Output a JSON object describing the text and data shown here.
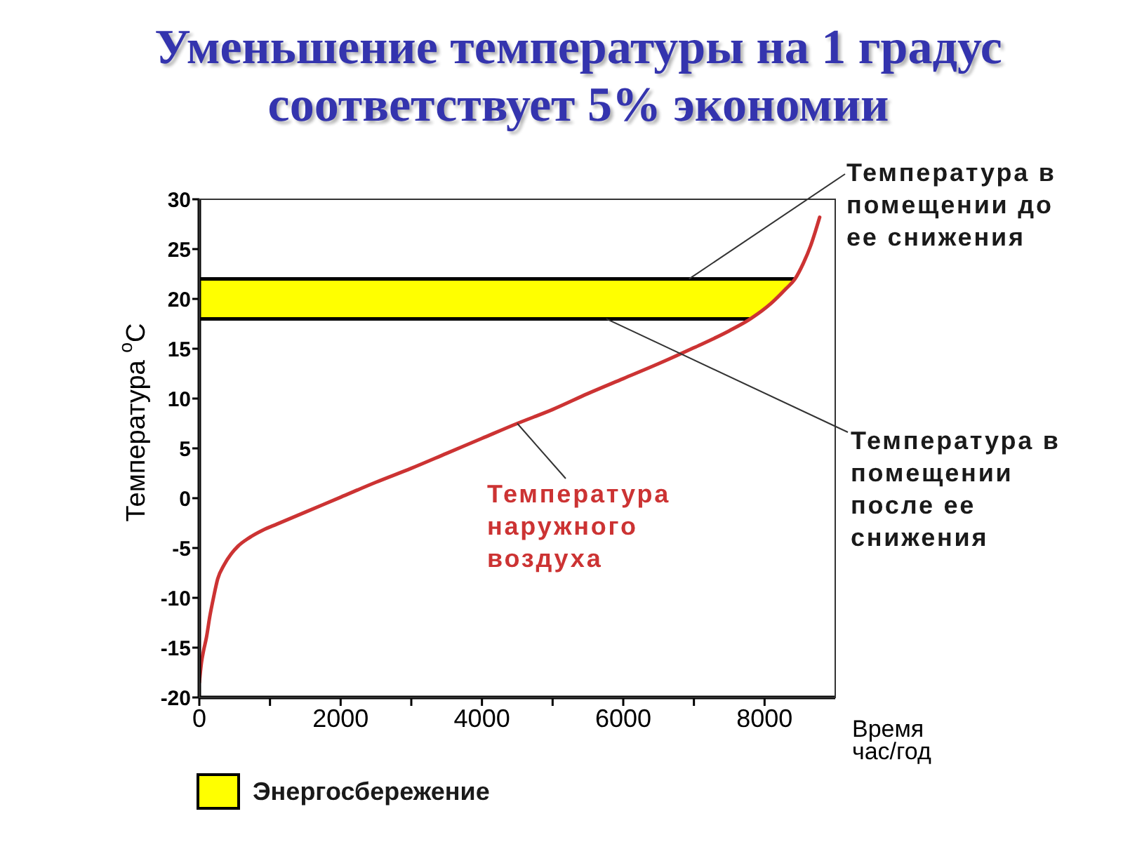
{
  "chart_data": {
    "type": "line",
    "title": "Уменьшение температуры на 1 градус\nсоответствует 5% экономии",
    "xlabel": "Время\nчас/год",
    "ylabel": "Температура $^{o}$C",
    "x": [
      0,
      30,
      60,
      100,
      150,
      200,
      260,
      350,
      450,
      550,
      700,
      900,
      1100,
      1500,
      2000,
      2500,
      3000,
      3500,
      4000,
      4500,
      5000,
      5500,
      6000,
      6500,
      7000,
      7500,
      7800,
      8100,
      8300,
      8430,
      8550,
      8650,
      8720,
      8780
    ],
    "series": [
      {
        "name": "Температура наружного воздуха",
        "color": "#cc3333",
        "values": [
          -18.5,
          -16.5,
          -15.3,
          -14.0,
          -11.8,
          -10.0,
          -8.1,
          -6.7,
          -5.6,
          -4.8,
          -4.0,
          -3.2,
          -2.6,
          -1.4,
          0.1,
          1.6,
          3.0,
          4.5,
          6.0,
          7.5,
          8.9,
          10.5,
          12.0,
          13.5,
          15.1,
          16.8,
          18.0,
          19.6,
          21.0,
          22.0,
          23.6,
          25.3,
          26.8,
          28.2
        ]
      }
    ],
    "xlim": [
      0,
      9000
    ],
    "xticks": [
      0,
      {
        "value": 1000,
        "label": null
      },
      2000,
      {
        "value": 3000,
        "label": null
      },
      4000,
      {
        "value": 5000,
        "label": null
      },
      6000,
      {
        "value": 7000,
        "label": null
      },
      8000
    ],
    "ylim": [
      -20,
      30
    ],
    "yticks": [
      -20,
      -15,
      -10,
      -5,
      0,
      5,
      10,
      15,
      20,
      25,
      30
    ],
    "bands": [
      {
        "axis": "y",
        "from": 18,
        "to": 22,
        "label": "Энергосбережение",
        "color": "#ffff00"
      }
    ],
    "ref_lines": [
      {
        "axis": "y",
        "value": 22,
        "label": "Температура в\nпомещении до\nее снижения",
        "color": "#000000"
      },
      {
        "axis": "y",
        "value": 18,
        "label": "Температура в\nпомещении\nпосле ее\nснижения",
        "color": "#000000"
      }
    ],
    "legend": "bottom left"
  }
}
